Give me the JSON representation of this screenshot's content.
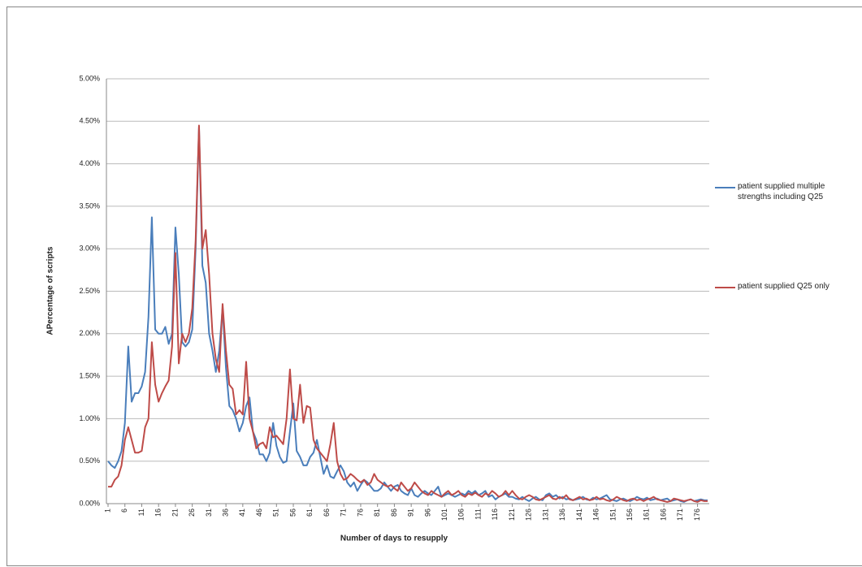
{
  "chart_data": {
    "type": "line",
    "x_label": "Number of days to resupply",
    "y_label": "APercentage of scripts",
    "x": [
      1,
      2,
      3,
      4,
      5,
      6,
      7,
      8,
      9,
      10,
      11,
      12,
      13,
      14,
      15,
      16,
      17,
      18,
      19,
      20,
      21,
      22,
      23,
      24,
      25,
      26,
      27,
      28,
      29,
      30,
      31,
      32,
      33,
      34,
      35,
      36,
      37,
      38,
      39,
      40,
      41,
      42,
      43,
      44,
      45,
      46,
      47,
      48,
      49,
      50,
      51,
      52,
      53,
      54,
      55,
      56,
      57,
      58,
      59,
      60,
      61,
      62,
      63,
      64,
      65,
      66,
      67,
      68,
      69,
      70,
      71,
      72,
      73,
      74,
      75,
      76,
      77,
      78,
      79,
      80,
      81,
      82,
      83,
      84,
      85,
      86,
      87,
      88,
      89,
      90,
      91,
      92,
      93,
      94,
      95,
      96,
      97,
      98,
      99,
      100,
      101,
      102,
      103,
      104,
      105,
      106,
      107,
      108,
      109,
      110,
      111,
      112,
      113,
      114,
      115,
      116,
      117,
      118,
      119,
      120,
      121,
      122,
      123,
      124,
      125,
      126,
      127,
      128,
      129,
      130,
      131,
      132,
      133,
      134,
      135,
      136,
      137,
      138,
      139,
      140,
      141,
      142,
      143,
      144,
      145,
      146,
      147,
      148,
      149,
      150,
      151,
      152,
      153,
      154,
      155,
      156,
      157,
      158,
      159,
      160,
      161,
      162,
      163,
      164,
      165,
      166,
      167,
      168,
      169,
      170,
      171,
      172,
      173,
      174,
      175,
      176,
      177,
      178,
      179
    ],
    "xlim": [
      1,
      179
    ],
    "xticks": [
      1,
      6,
      11,
      16,
      21,
      26,
      31,
      36,
      41,
      46,
      51,
      56,
      61,
      66,
      71,
      76,
      81,
      86,
      91,
      96,
      101,
      106,
      111,
      116,
      121,
      126,
      131,
      136,
      141,
      146,
      151,
      156,
      161,
      166,
      171,
      176
    ],
    "ylim": [
      0,
      5
    ],
    "yticks": [
      {
        "value": 0,
        "label": "0.00%"
      },
      {
        "value": 0.5,
        "label": "0.50%"
      },
      {
        "value": 1,
        "label": "1.00%"
      },
      {
        "value": 1.5,
        "label": "1.50%"
      },
      {
        "value": 2,
        "label": "2.00%"
      },
      {
        "value": 2.5,
        "label": "2.50%"
      },
      {
        "value": 3,
        "label": "3.00%"
      },
      {
        "value": 3.5,
        "label": "3.50%"
      },
      {
        "value": 4,
        "label": "4.00%"
      },
      {
        "value": 4.5,
        "label": "4.50%"
      },
      {
        "value": 5,
        "label": "5.00%"
      }
    ],
    "grid": true,
    "legend": "right",
    "series": [
      {
        "name": "patient supplied multiple strengths including Q25",
        "color": "#4a7ebb",
        "values": [
          0.5,
          0.45,
          0.42,
          0.5,
          0.62,
          0.95,
          1.85,
          1.2,
          1.3,
          1.3,
          1.38,
          1.55,
          2.2,
          3.37,
          2.05,
          2.0,
          2.0,
          2.08,
          1.88,
          2.0,
          3.25,
          2.7,
          1.9,
          1.85,
          1.9,
          2.05,
          3.0,
          4.43,
          2.8,
          2.6,
          2.0,
          1.8,
          1.55,
          1.8,
          2.3,
          1.6,
          1.15,
          1.1,
          1.0,
          0.85,
          0.95,
          1.15,
          1.25,
          0.85,
          0.75,
          0.58,
          0.58,
          0.5,
          0.6,
          0.95,
          0.68,
          0.55,
          0.48,
          0.5,
          0.85,
          1.18,
          0.62,
          0.55,
          0.45,
          0.45,
          0.55,
          0.6,
          0.75,
          0.55,
          0.35,
          0.45,
          0.32,
          0.3,
          0.38,
          0.45,
          0.38,
          0.25,
          0.2,
          0.25,
          0.15,
          0.22,
          0.28,
          0.25,
          0.2,
          0.15,
          0.15,
          0.18,
          0.25,
          0.2,
          0.15,
          0.2,
          0.22,
          0.15,
          0.12,
          0.1,
          0.18,
          0.1,
          0.08,
          0.12,
          0.15,
          0.12,
          0.1,
          0.15,
          0.2,
          0.08,
          0.1,
          0.12,
          0.1,
          0.08,
          0.1,
          0.12,
          0.1,
          0.15,
          0.12,
          0.15,
          0.1,
          0.12,
          0.15,
          0.08,
          0.1,
          0.05,
          0.08,
          0.1,
          0.12,
          0.08,
          0.08,
          0.06,
          0.05,
          0.08,
          0.05,
          0.03,
          0.06,
          0.08,
          0.05,
          0.04,
          0.1,
          0.12,
          0.08,
          0.1,
          0.06,
          0.08,
          0.05,
          0.06,
          0.04,
          0.05,
          0.06,
          0.08,
          0.05,
          0.04,
          0.07,
          0.05,
          0.06,
          0.08,
          0.1,
          0.05,
          0.04,
          0.03,
          0.05,
          0.06,
          0.04,
          0.03,
          0.05,
          0.08,
          0.06,
          0.05,
          0.07,
          0.04,
          0.05,
          0.06,
          0.04,
          0.05,
          0.06,
          0.03,
          0.04,
          0.05,
          0.03,
          0.02,
          0.04,
          0.05,
          0.03,
          0.04,
          0.05,
          0.04,
          0.04
        ]
      },
      {
        "name": "patient supplied Q25 only",
        "color": "#be4b48",
        "values": [
          0.2,
          0.2,
          0.28,
          0.32,
          0.45,
          0.75,
          0.9,
          0.75,
          0.6,
          0.6,
          0.62,
          0.9,
          1.0,
          1.9,
          1.4,
          1.2,
          1.3,
          1.38,
          1.45,
          1.85,
          2.95,
          1.65,
          2.0,
          1.9,
          2.0,
          2.3,
          3.1,
          4.45,
          3.0,
          3.22,
          2.7,
          2.0,
          1.7,
          1.55,
          2.35,
          1.8,
          1.4,
          1.35,
          1.05,
          1.1,
          1.05,
          1.67,
          1.0,
          0.85,
          0.65,
          0.7,
          0.72,
          0.65,
          0.9,
          0.78,
          0.8,
          0.75,
          0.7,
          1.0,
          1.58,
          1.0,
          0.98,
          1.4,
          0.95,
          1.15,
          1.13,
          0.75,
          0.65,
          0.6,
          0.55,
          0.5,
          0.7,
          0.95,
          0.5,
          0.35,
          0.28,
          0.3,
          0.35,
          0.32,
          0.28,
          0.25,
          0.28,
          0.22,
          0.25,
          0.35,
          0.28,
          0.25,
          0.22,
          0.2,
          0.22,
          0.18,
          0.15,
          0.25,
          0.2,
          0.15,
          0.18,
          0.25,
          0.2,
          0.15,
          0.12,
          0.1,
          0.15,
          0.12,
          0.1,
          0.08,
          0.12,
          0.15,
          0.1,
          0.12,
          0.15,
          0.1,
          0.08,
          0.12,
          0.1,
          0.13,
          0.1,
          0.08,
          0.12,
          0.1,
          0.15,
          0.12,
          0.08,
          0.1,
          0.15,
          0.1,
          0.15,
          0.1,
          0.06,
          0.05,
          0.08,
          0.1,
          0.08,
          0.05,
          0.04,
          0.06,
          0.08,
          0.1,
          0.06,
          0.05,
          0.08,
          0.06,
          0.1,
          0.05,
          0.04,
          0.06,
          0.08,
          0.05,
          0.06,
          0.04,
          0.05,
          0.08,
          0.05,
          0.06,
          0.04,
          0.03,
          0.05,
          0.08,
          0.06,
          0.04,
          0.03,
          0.05,
          0.06,
          0.04,
          0.05,
          0.03,
          0.05,
          0.06,
          0.08,
          0.05,
          0.04,
          0.03,
          0.02,
          0.03,
          0.06,
          0.05,
          0.04,
          0.03,
          0.04,
          0.05,
          0.03,
          0.02,
          0.04,
          0.03,
          0.03
        ]
      }
    ]
  }
}
